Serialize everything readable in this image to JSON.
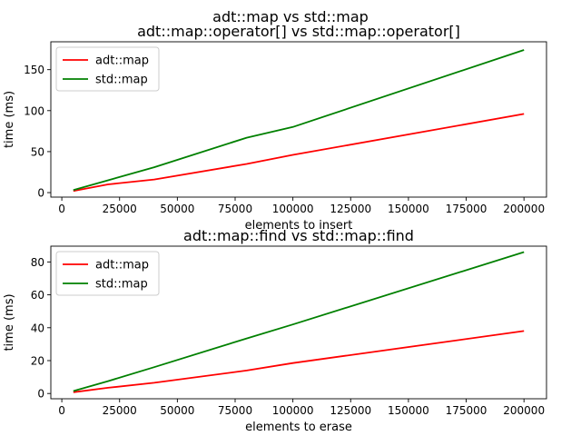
{
  "figure": {
    "suptitle": "adt::map vs std::map"
  },
  "chart_data": [
    {
      "type": "line",
      "title": "adt::map::operator[] vs std::map::operator[]",
      "xlabel": "elements to insert",
      "ylabel": "time (ms)",
      "xlim": [
        -4750,
        209750
      ],
      "ylim": [
        -5.5,
        184
      ],
      "xticks": [
        0,
        25000,
        50000,
        75000,
        100000,
        125000,
        150000,
        175000,
        200000
      ],
      "yticks": [
        0,
        50,
        100,
        150
      ],
      "grid": false,
      "legend": "top-left",
      "x": [
        5000,
        20000,
        40000,
        80000,
        100000,
        200000
      ],
      "series": [
        {
          "name": "adt::map",
          "color": "#ff0000",
          "values": [
            2,
            10,
            16,
            35,
            46,
            96
          ]
        },
        {
          "name": "std::map",
          "color": "#008000",
          "values": [
            3,
            15,
            31,
            67,
            80,
            174
          ]
        }
      ]
    },
    {
      "type": "line",
      "title": "adt::map::find vs std::map::find",
      "xlabel": "elements to erase",
      "ylabel": "time (ms)",
      "xlim": [
        -4750,
        209750
      ],
      "ylim": [
        -3.2,
        89.6
      ],
      "xticks": [
        0,
        25000,
        50000,
        75000,
        100000,
        125000,
        150000,
        175000,
        200000
      ],
      "yticks": [
        0,
        20,
        40,
        60,
        80
      ],
      "grid": false,
      "legend": "top-left",
      "x": [
        5000,
        20000,
        40000,
        80000,
        100000,
        200000
      ],
      "series": [
        {
          "name": "adt::map",
          "color": "#ff0000",
          "values": [
            0.8,
            3.5,
            6.5,
            14,
            18.5,
            38
          ]
        },
        {
          "name": "std::map",
          "color": "#008000",
          "values": [
            1.5,
            7.5,
            16,
            33.5,
            42,
            86
          ]
        }
      ]
    }
  ]
}
